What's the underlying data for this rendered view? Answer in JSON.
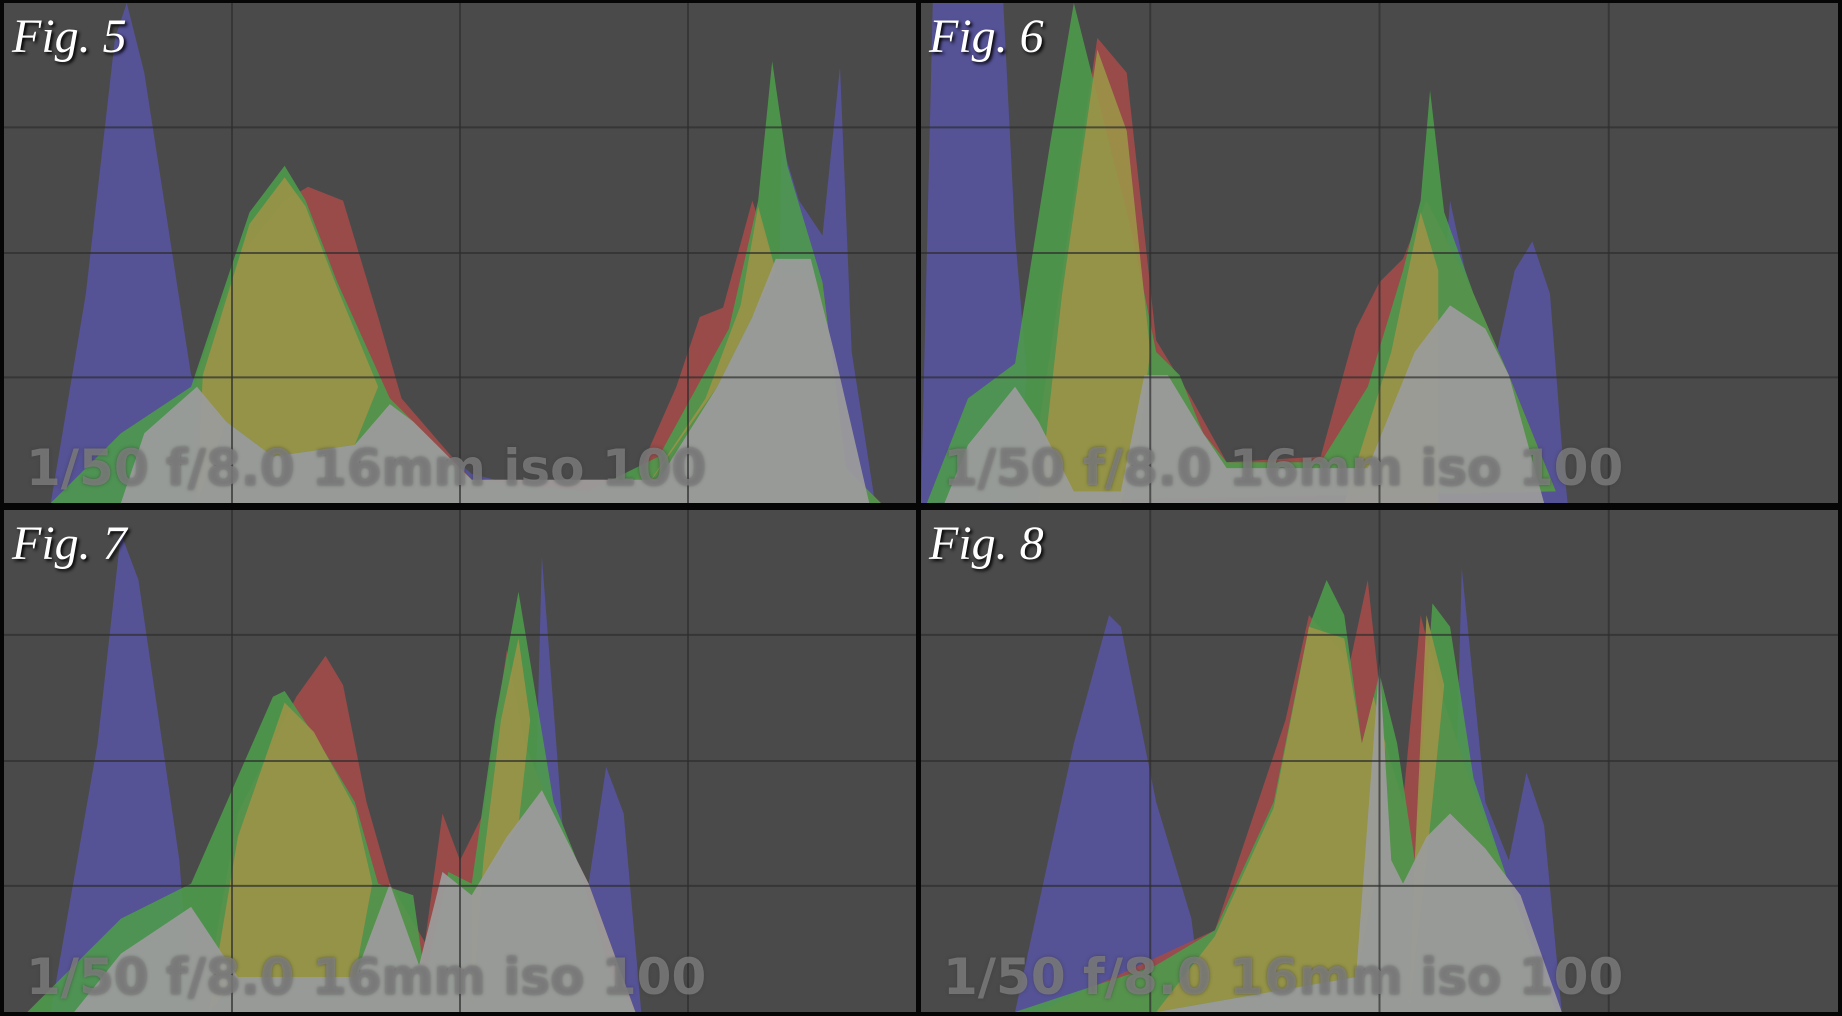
{
  "figures": [
    {
      "title": "Fig. 5",
      "exif": "1/50 f/8.0 16mm iso 100"
    },
    {
      "title": "Fig. 6",
      "exif": "1/50 f/8.0 16mm iso 100"
    },
    {
      "title": "Fig. 7",
      "exif": "1/50 f/8.0 16mm iso 100"
    },
    {
      "title": "Fig. 8",
      "exif": "1/50 f/8.0 16mm iso 100"
    }
  ]
}
